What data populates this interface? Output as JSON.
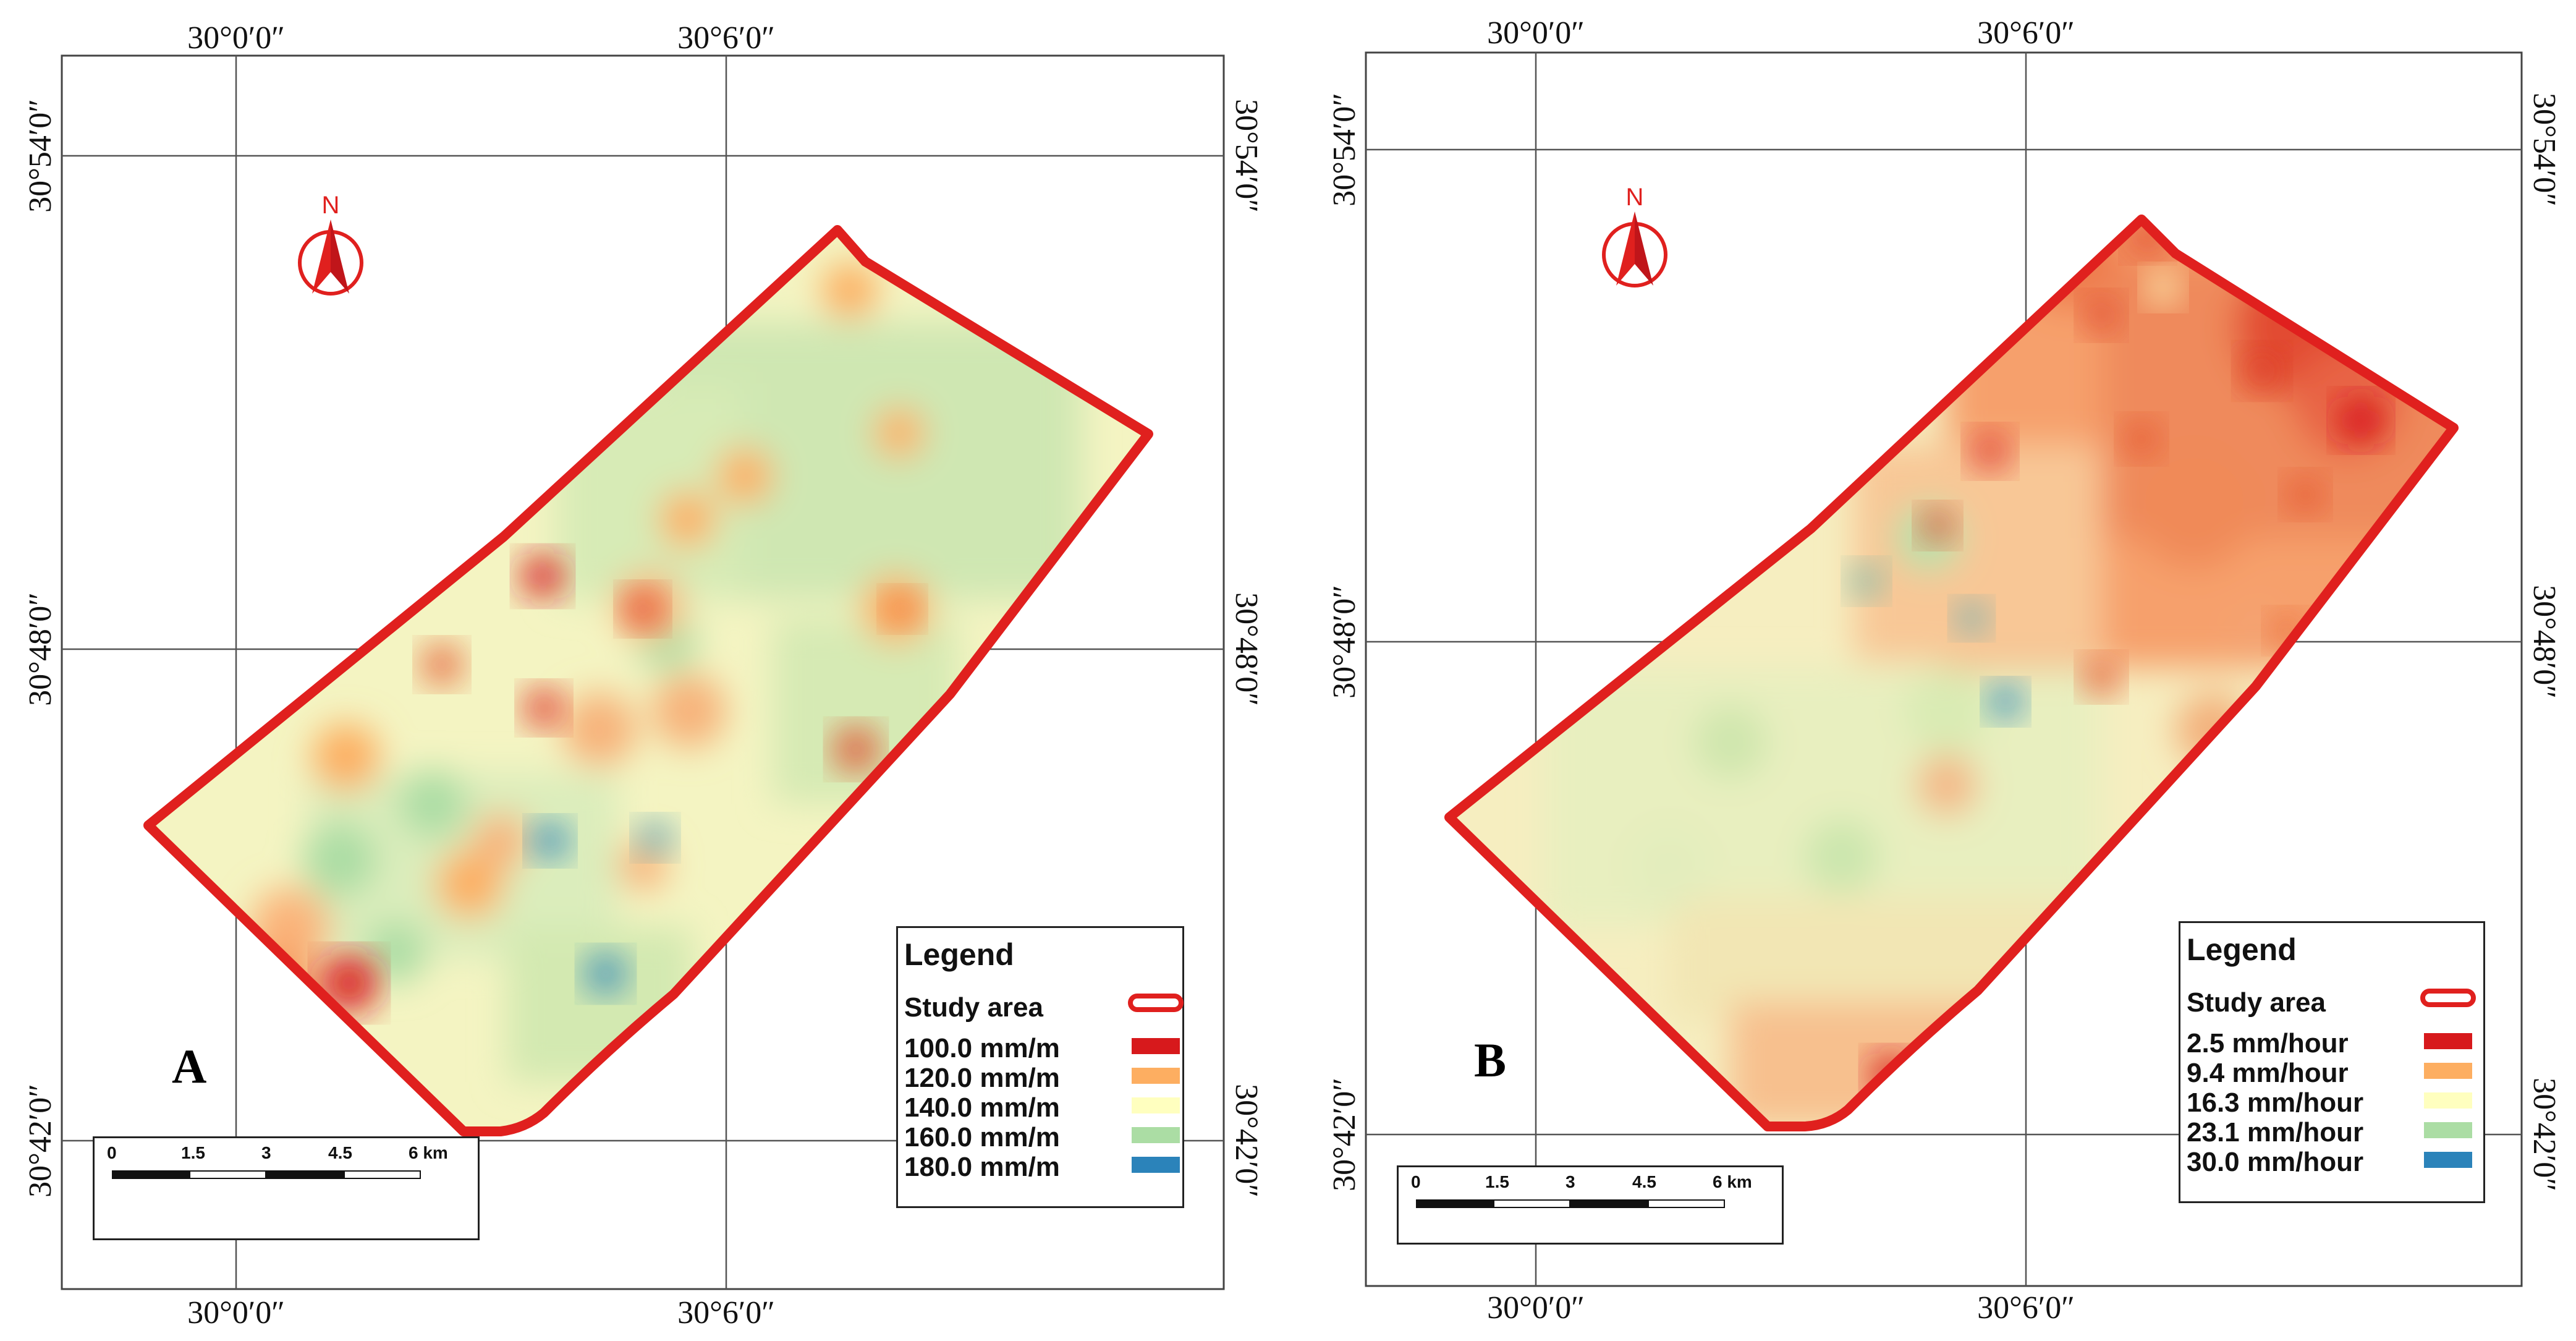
{
  "colors": {
    "study_outline": "#e0201e",
    "class_1": "#d7191c",
    "class_2": "#fdae61",
    "class_3": "#ffffbf",
    "class_4": "#abdda4",
    "class_5": "#2b83ba"
  },
  "north_arrow": {
    "label": "N",
    "icon": "north-arrow-icon"
  },
  "coordinates": {
    "lon_left": "30°0′0″",
    "lon_right": "30°6′0″",
    "lat_top": "30°54′0″",
    "lat_mid": "30°48′0″",
    "lat_bottom": "30°42′0″"
  },
  "scale_bar": {
    "ticks": [
      "0",
      "1.5",
      "3",
      "4.5",
      "6 km"
    ]
  },
  "panels": [
    {
      "letter": "A",
      "legend": {
        "title": "Legend",
        "study_area_label": "Study area",
        "classes": [
          "100.0 mm/m",
          "120.0 mm/m",
          "140.0 mm/m",
          "160.0 mm/m",
          "180.0 mm/m"
        ]
      }
    },
    {
      "letter": "B",
      "legend": {
        "title": "Legend",
        "study_area_label": "Study area",
        "classes": [
          "2.5 mm/hour",
          "9.4 mm/hour",
          "16.3 mm/hour",
          "23.1 mm/hour",
          "30.0 mm/hour"
        ]
      }
    }
  ]
}
